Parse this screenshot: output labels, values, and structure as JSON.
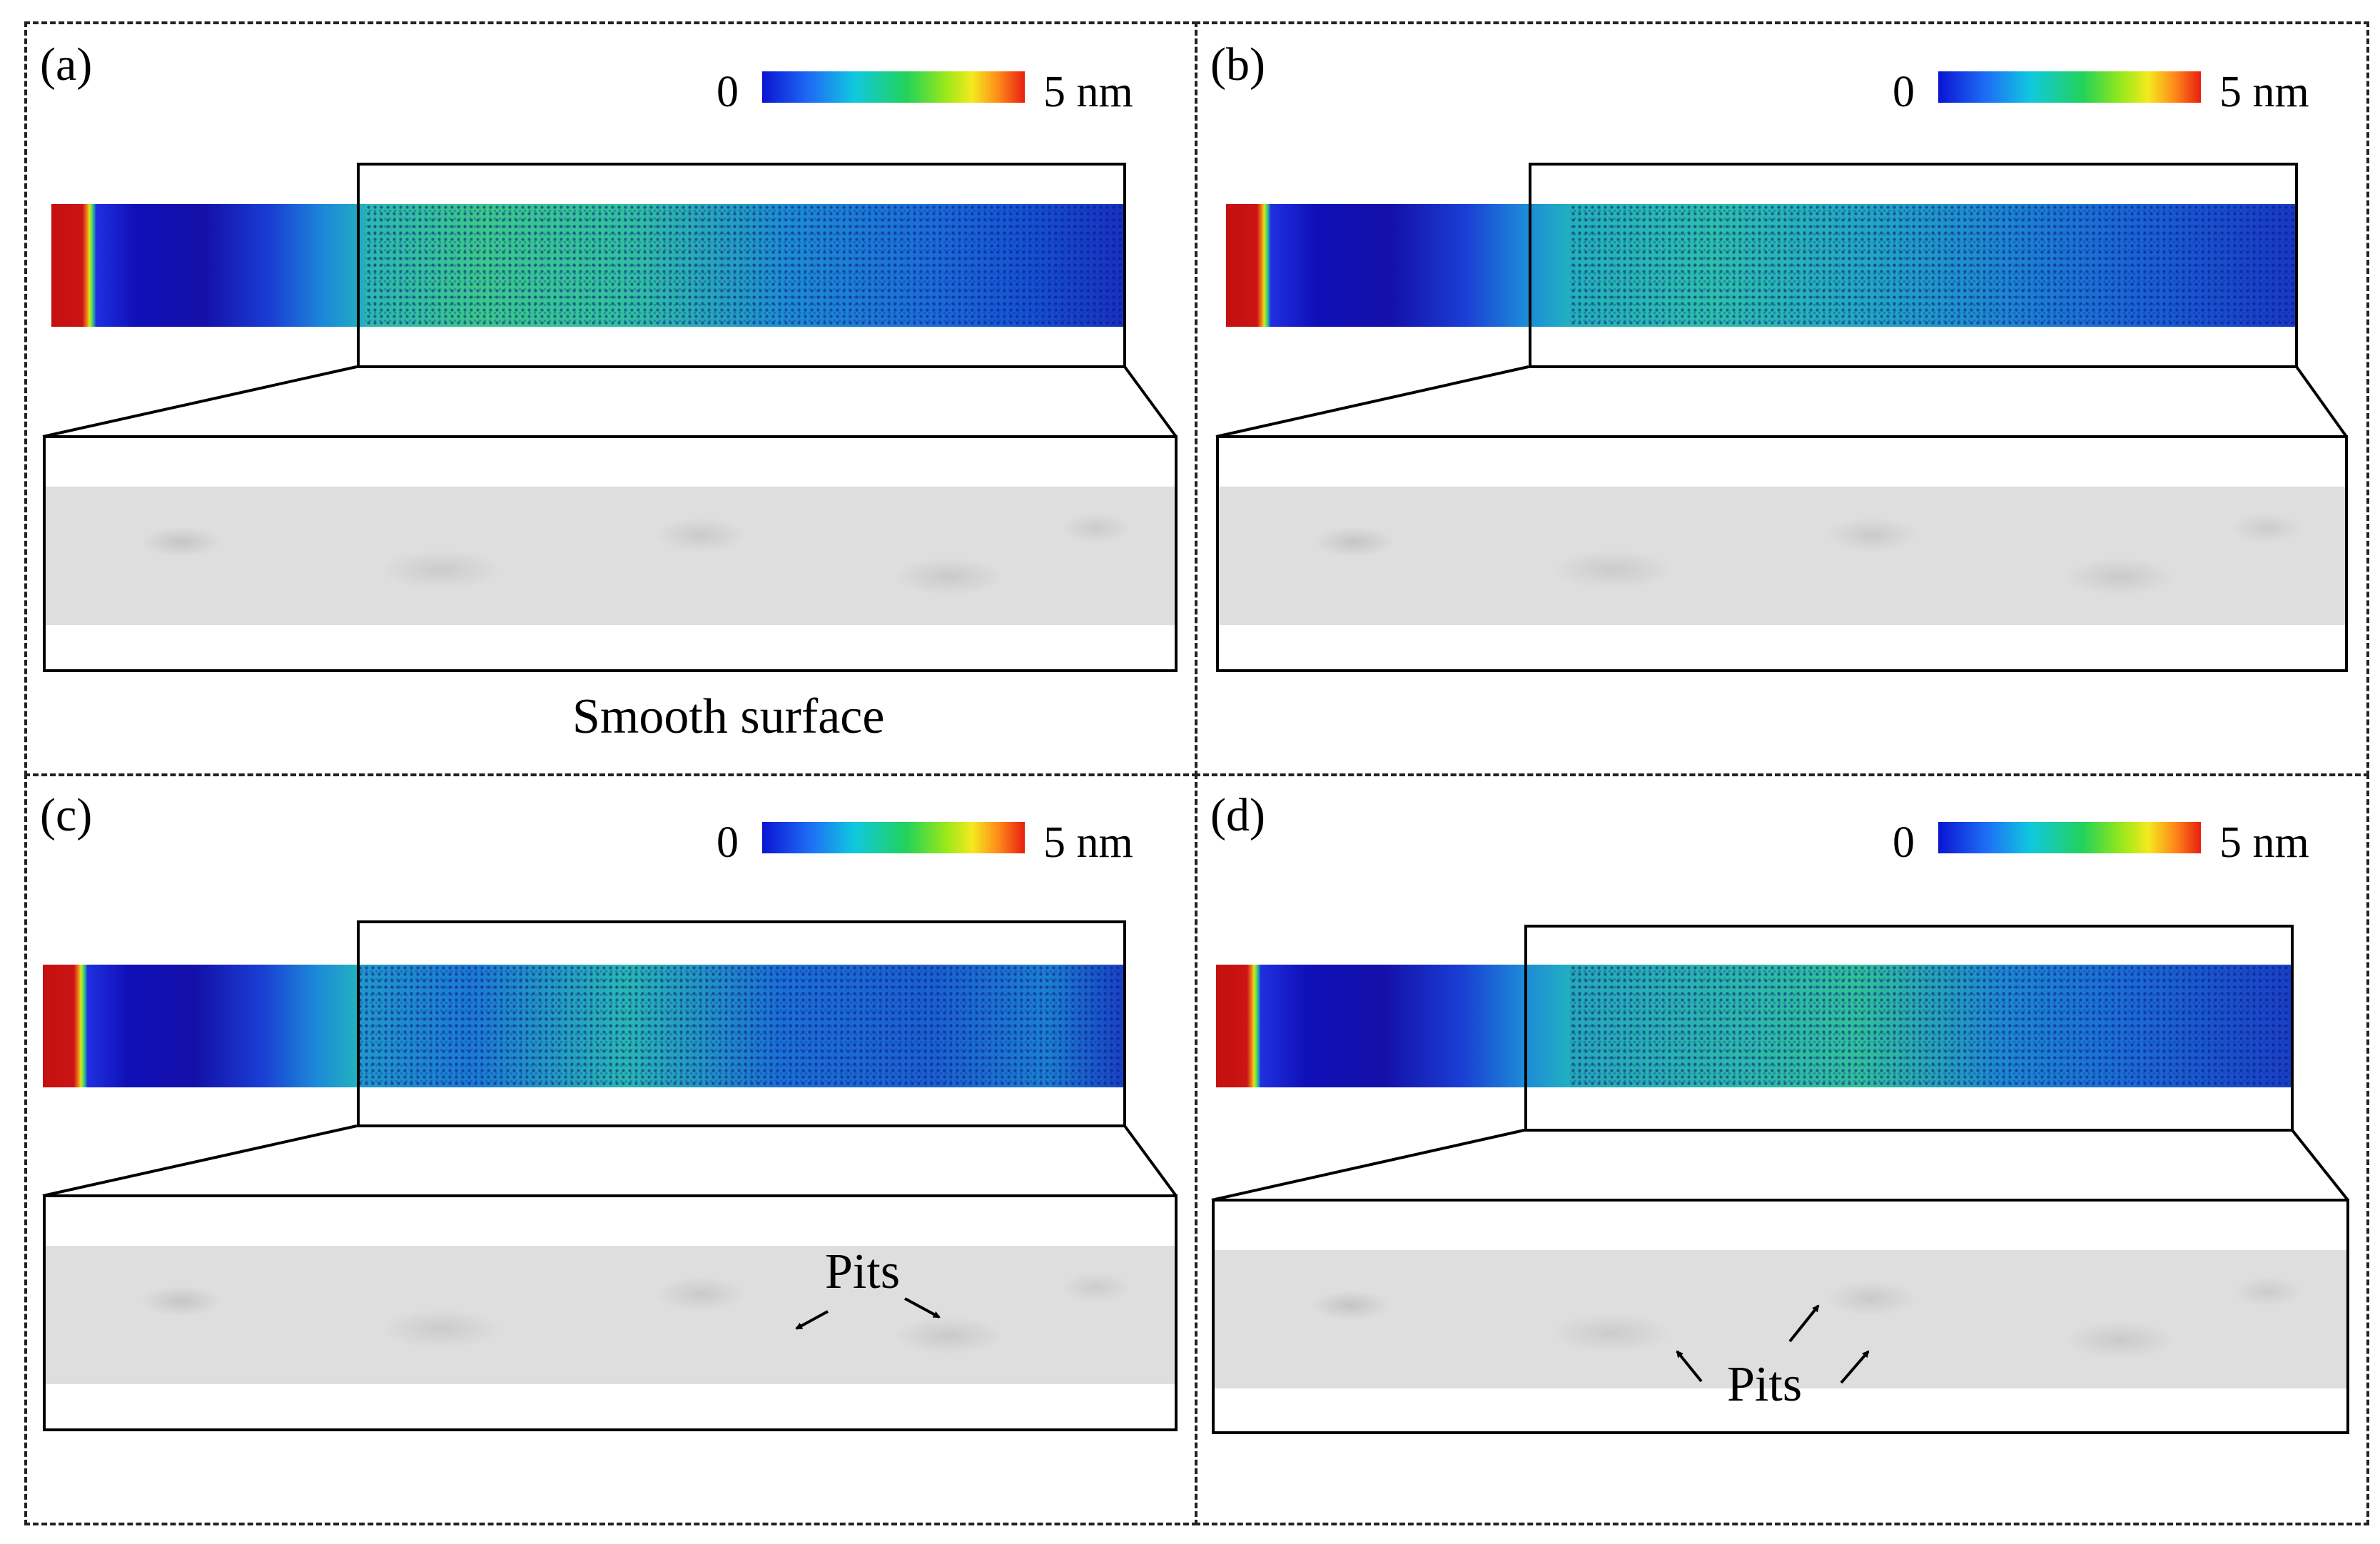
{
  "colorbar": {
    "min_label": "0",
    "max_label": "5 nm"
  },
  "panels": [
    {
      "label": "(a)",
      "caption": "Smooth surface"
    },
    {
      "label": "(b)"
    },
    {
      "label": "(c)",
      "annotation": "Pits"
    },
    {
      "label": "(d)",
      "annotation": "Pits"
    }
  ],
  "colors": {
    "frame": "#000000",
    "dashed_border": "#222222",
    "hot_end": "#c41010",
    "surface_gray": "#dedede"
  }
}
